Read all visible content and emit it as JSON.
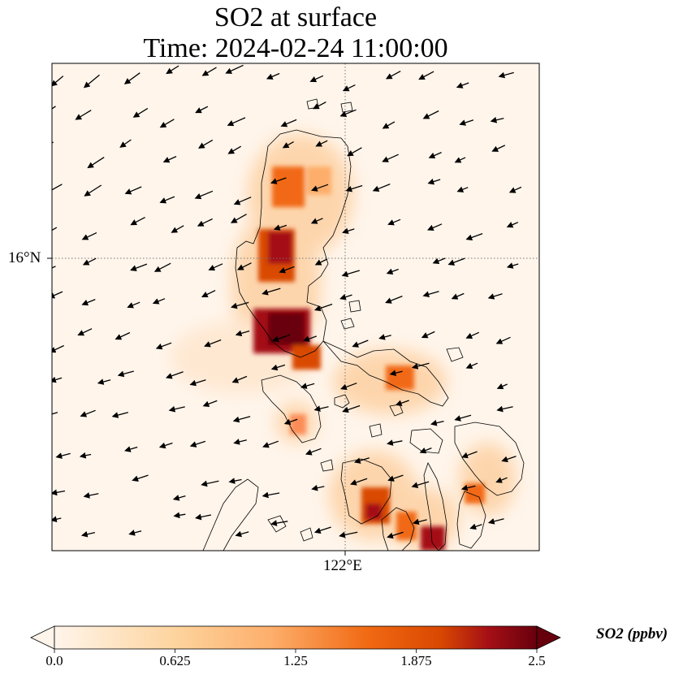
{
  "title": {
    "line1": "SO2 at surface",
    "line2": "Time: 2024-02-24 11:00:00"
  },
  "axes": {
    "lat_label": "16°N",
    "lon_label": "122°E"
  },
  "colorbar": {
    "units_label": "SO2 (ppbv)",
    "ticks": [
      "0.0",
      "0.625",
      "1.25",
      "1.875",
      "2.5"
    ],
    "min": 0.0,
    "max": 2.5,
    "colormap": [
      "#fff5eb",
      "#fdd49e",
      "#fdae6b",
      "#f16913",
      "#d94801",
      "#a50f15",
      "#67000d"
    ]
  },
  "style": {
    "background": "#fff5eb",
    "coast_color": "#000000",
    "grid_color": "#777777"
  }
}
